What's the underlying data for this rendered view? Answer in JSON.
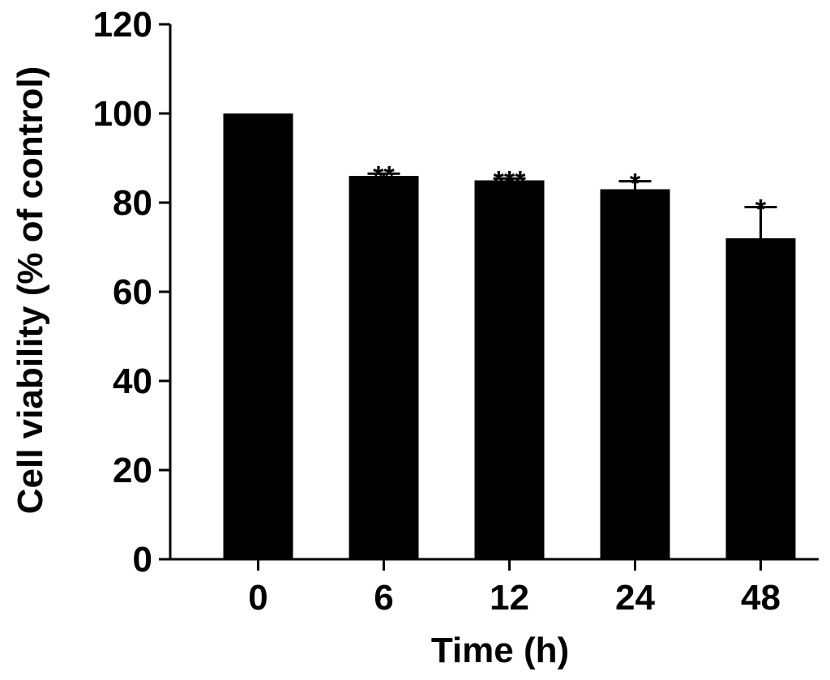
{
  "chart_data": {
    "type": "bar",
    "title": "",
    "xlabel": "Time (h)",
    "ylabel": "Cell viability (% of control)",
    "categories": [
      "0",
      "6",
      "12",
      "24",
      "48"
    ],
    "values": [
      100,
      86,
      85,
      83,
      72
    ],
    "errors": [
      0,
      0.5,
      0.4,
      1.8,
      7
    ],
    "significance": [
      "",
      "**",
      "***",
      "*",
      "*"
    ],
    "yticks": [
      "0",
      "20",
      "40",
      "60",
      "80",
      "100",
      "120"
    ],
    "ylim": [
      0,
      120
    ],
    "grid": false,
    "legend": "none",
    "bar_color": "#000000"
  }
}
